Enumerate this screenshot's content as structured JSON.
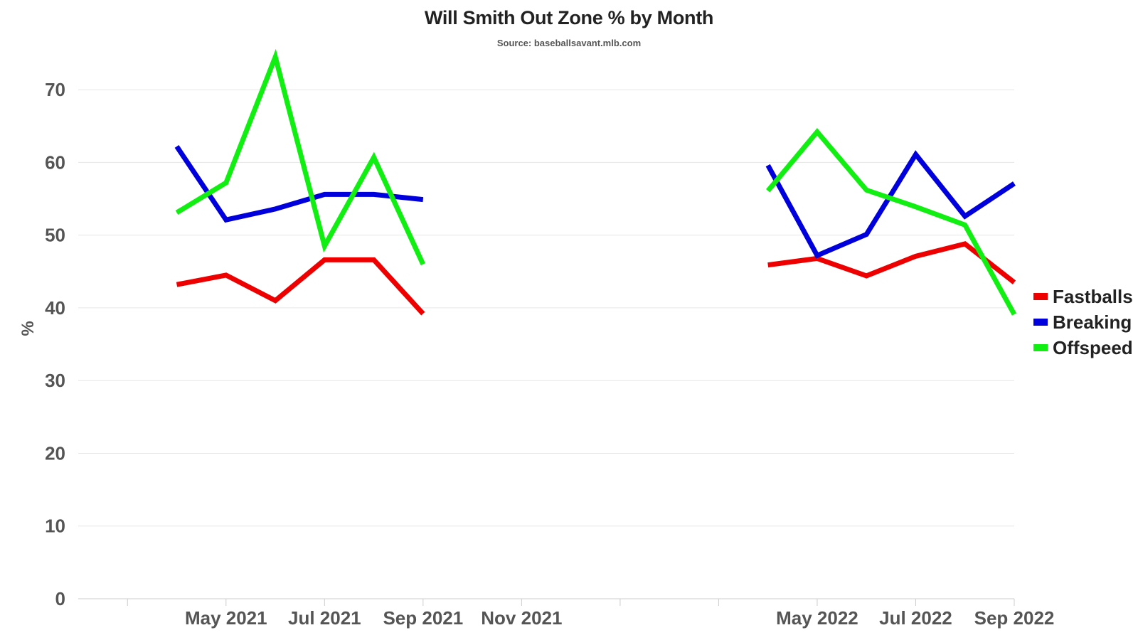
{
  "chart_data": {
    "type": "line",
    "title": "Will Smith Out Zone % by Month",
    "subtitle": "Source: baseballsavant.mlb.com",
    "xlabel": "",
    "ylabel": "%",
    "ylim": [
      0,
      75
    ],
    "yticks": [
      0,
      10,
      20,
      30,
      40,
      50,
      60,
      70
    ],
    "grid": true,
    "legend_position": "right",
    "x_time_domain": [
      "2021-02",
      "2022-09"
    ],
    "x_ticks": [
      {
        "label": "May 2021",
        "month": "2021-05"
      },
      {
        "label": "Jul 2021",
        "month": "2021-07"
      },
      {
        "label": "Sep 2021",
        "month": "2021-09"
      },
      {
        "label": "Nov 2021",
        "month": "2021-11"
      },
      {
        "label": "May 2022",
        "month": "2022-05"
      },
      {
        "label": "Jul 2022",
        "month": "2022-07"
      },
      {
        "label": "Sep 2022",
        "month": "2022-09"
      }
    ],
    "x_minor_ticks": [
      "2021-03",
      "2022-01",
      "2022-03"
    ],
    "series": [
      {
        "name": "Fastballs",
        "color": "#ee0000",
        "segments": [
          {
            "x": [
              "2021-04",
              "2021-05",
              "2021-06",
              "2021-07",
              "2021-08",
              "2021-09"
            ],
            "values": [
              43.2,
              44.5,
              41.0,
              46.6,
              46.6,
              39.2
            ]
          },
          {
            "x": [
              "2022-04",
              "2022-05",
              "2022-06",
              "2022-07",
              "2022-08",
              "2022-09"
            ],
            "values": [
              45.9,
              46.8,
              44.4,
              47.1,
              48.8,
              43.5
            ]
          }
        ]
      },
      {
        "name": "Breaking",
        "color": "#0000dd",
        "segments": [
          {
            "x": [
              "2021-04",
              "2021-05",
              "2021-06",
              "2021-07",
              "2021-08",
              "2021-09"
            ],
            "values": [
              62.2,
              52.1,
              53.6,
              55.6,
              55.6,
              54.9
            ]
          },
          {
            "x": [
              "2022-04",
              "2022-05",
              "2022-06",
              "2022-07",
              "2022-08",
              "2022-09"
            ],
            "values": [
              59.6,
              47.2,
              50.1,
              61.1,
              52.6,
              57.1
            ]
          }
        ]
      },
      {
        "name": "Offspeed",
        "color": "#11ee11",
        "segments": [
          {
            "x": [
              "2021-04",
              "2021-05",
              "2021-06",
              "2021-07",
              "2021-08",
              "2021-09"
            ],
            "values": [
              53.1,
              57.2,
              74.5,
              48.5,
              60.7,
              46.0
            ]
          },
          {
            "x": [
              "2022-04",
              "2022-05",
              "2022-06",
              "2022-07",
              "2022-08",
              "2022-09"
            ],
            "values": [
              56.1,
              64.2,
              56.2,
              53.9,
              51.4,
              39.1
            ]
          }
        ]
      }
    ]
  },
  "colors": {
    "grid": "#e6e6e6",
    "axis": "#cccccc",
    "tick_text": "#555555",
    "background": "#ffffff"
  }
}
